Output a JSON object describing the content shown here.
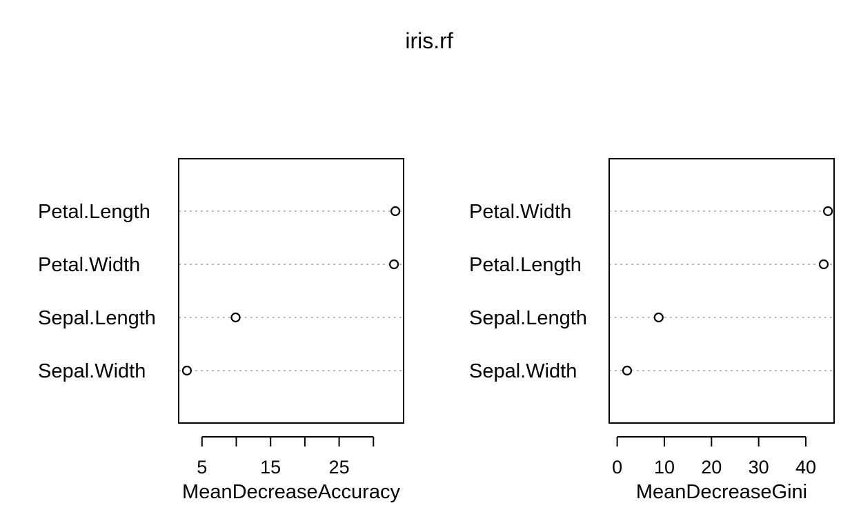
{
  "chart_data": {
    "type": "scatter",
    "title": "iris.rf",
    "panels": [
      {
        "id": "accuracy",
        "xlabel": "MeanDecreaseAccuracy",
        "xlim": [
          1.6,
          34.4
        ],
        "xticks": [
          5,
          10,
          15,
          20,
          25,
          30
        ],
        "xtick_labels": [
          "5",
          "",
          "15",
          "",
          "25",
          ""
        ],
        "categories": [
          "Petal.Length",
          "Petal.Width",
          "Sepal.Length",
          "Sepal.Width"
        ],
        "values": [
          33.2,
          33.0,
          9.9,
          2.8
        ],
        "grid": "dotted horizontal"
      },
      {
        "id": "gini",
        "xlabel": "MeanDecreaseGini",
        "xlim": [
          -1.7,
          46.0
        ],
        "xticks": [
          0,
          10,
          20,
          30,
          40
        ],
        "xtick_labels": [
          "0",
          "10",
          "20",
          "30",
          "40"
        ],
        "categories": [
          "Petal.Width",
          "Petal.Length",
          "Sepal.Length",
          "Sepal.Width"
        ],
        "values": [
          44.7,
          43.8,
          8.8,
          2.1
        ],
        "grid": "dotted horizontal"
      }
    ]
  }
}
